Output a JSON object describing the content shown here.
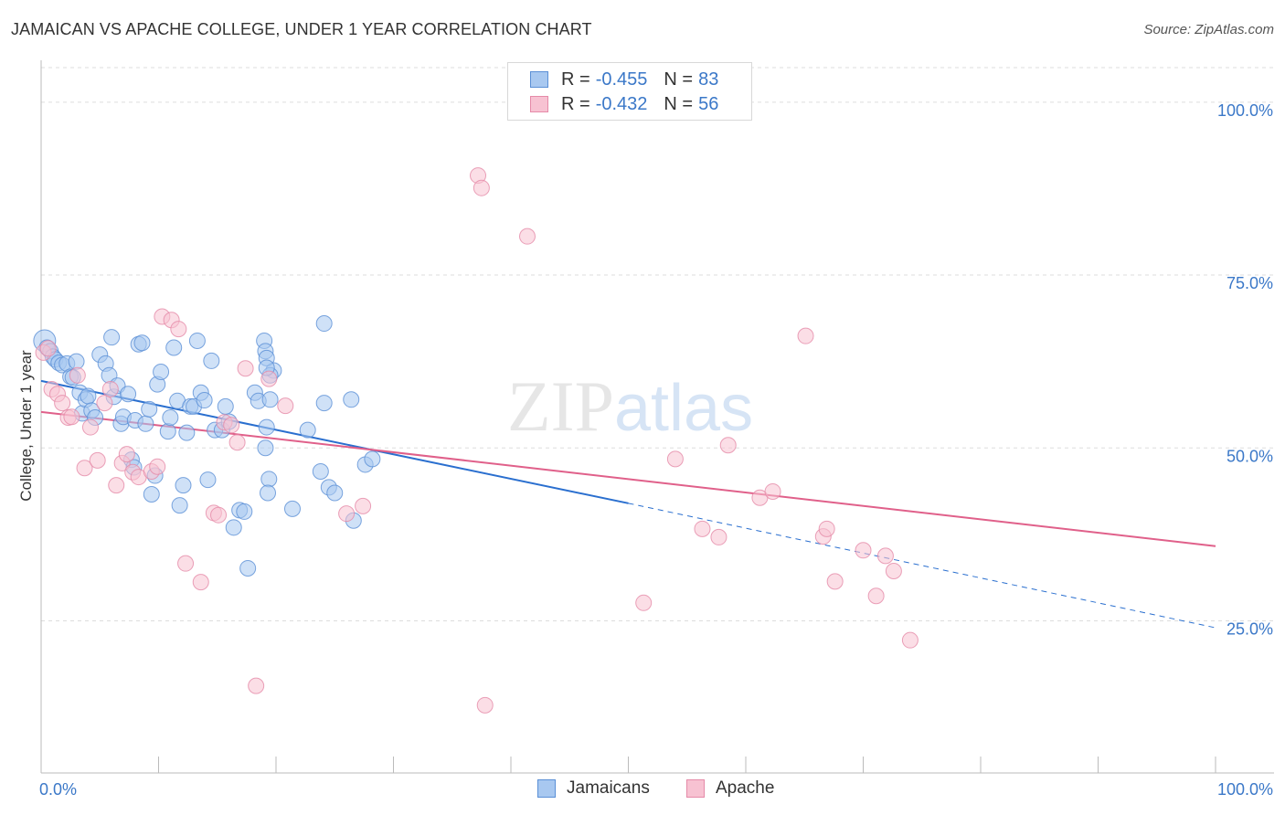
{
  "header": {
    "title": "JAMAICAN VS APACHE COLLEGE, UNDER 1 YEAR CORRELATION CHART",
    "source": "Source: ZipAtlas.com"
  },
  "watermark": {
    "zip": "ZIP",
    "atlas": "atlas"
  },
  "legend": {
    "rows": [
      {
        "r_label": "R =",
        "r_value": "-0.455",
        "n_label": "N =",
        "n_value": "83"
      },
      {
        "r_label": "R =",
        "r_value": "-0.432",
        "n_label": "N =",
        "n_value": "56"
      }
    ]
  },
  "bottom_legend": {
    "series1": "Jamaicans",
    "series2": "Apache"
  },
  "colors": {
    "jamaicans_fill": "#a8c8f0",
    "jamaicans_stroke": "#5a8fd6",
    "jamaicans_line": "#2a6fcf",
    "apache_fill": "#f7c2d2",
    "apache_stroke": "#e58aa8",
    "apache_line": "#e0608a",
    "tick_label": "#3b78c8",
    "grid": "#dddddd"
  },
  "chart_data": {
    "type": "scatter",
    "title": "JAMAICAN VS APACHE COLLEGE, UNDER 1 YEAR CORRELATION CHART",
    "xlabel": "",
    "ylabel": "College, Under 1 year",
    "xlim": [
      0,
      100
    ],
    "ylim": [
      3,
      105
    ],
    "x_tick_labels": [
      "0.0%",
      "100.0%"
    ],
    "y_ticks": [
      25,
      50,
      75,
      100
    ],
    "y_tick_labels": [
      "25.0%",
      "50.0%",
      "75.0%",
      "100.0%"
    ],
    "grid": true,
    "legend_position": "top-center",
    "series": [
      {
        "name": "Jamaicans",
        "r": -0.455,
        "n": 83,
        "trend": {
          "x0": 0,
          "y0": 59.7,
          "x1": 50,
          "y1": 42,
          "dashed_to_x": 100,
          "dashed_to_y": 24
        },
        "points": [
          [
            0.3,
            65.5
          ],
          [
            0.5,
            64.5
          ],
          [
            0.8,
            64
          ],
          [
            1,
            63.2
          ],
          [
            1.2,
            62.8
          ],
          [
            1.5,
            62.3
          ],
          [
            1.8,
            62
          ],
          [
            2.2,
            62.2
          ],
          [
            2.5,
            60.3
          ],
          [
            2.7,
            60.2
          ],
          [
            3,
            62.5
          ],
          [
            3.3,
            58
          ],
          [
            3.5,
            55
          ],
          [
            3.8,
            57
          ],
          [
            4,
            57.5
          ],
          [
            4.3,
            55.4
          ],
          [
            4.6,
            54.4
          ],
          [
            5,
            63.5
          ],
          [
            5.5,
            62.2
          ],
          [
            5.8,
            60.5
          ],
          [
            6,
            66
          ],
          [
            6.2,
            57.4
          ],
          [
            6.5,
            59
          ],
          [
            6.8,
            53.5
          ],
          [
            7,
            54.5
          ],
          [
            7.4,
            57.8
          ],
          [
            7.7,
            48.3
          ],
          [
            7.9,
            47.2
          ],
          [
            8,
            54
          ],
          [
            8.3,
            65
          ],
          [
            8.6,
            65.2
          ],
          [
            8.9,
            53.5
          ],
          [
            9.2,
            55.6
          ],
          [
            9.4,
            43.3
          ],
          [
            9.7,
            46
          ],
          [
            9.9,
            59.2
          ],
          [
            10.2,
            61
          ],
          [
            10.8,
            52.4
          ],
          [
            11,
            54.4
          ],
          [
            11.3,
            64.5
          ],
          [
            11.6,
            56.8
          ],
          [
            11.8,
            41.7
          ],
          [
            12.1,
            44.6
          ],
          [
            12.4,
            52.2
          ],
          [
            12.7,
            56
          ],
          [
            13,
            56
          ],
          [
            13.3,
            65.5
          ],
          [
            13.6,
            58
          ],
          [
            13.9,
            56.9
          ],
          [
            14.2,
            45.4
          ],
          [
            14.5,
            62.6
          ],
          [
            14.8,
            52.6
          ],
          [
            15.4,
            52.6
          ],
          [
            15.7,
            56
          ],
          [
            16,
            53.8
          ],
          [
            16.4,
            38.5
          ],
          [
            16.9,
            41
          ],
          [
            17.3,
            40.8
          ],
          [
            17.6,
            32.6
          ],
          [
            18.2,
            58
          ],
          [
            18.5,
            56.8
          ],
          [
            19,
            65.5
          ],
          [
            19.5,
            57
          ],
          [
            19.8,
            61.2
          ],
          [
            19.2,
            53
          ],
          [
            19.5,
            60.5
          ],
          [
            19.1,
            64
          ],
          [
            19.2,
            63
          ],
          [
            19.2,
            61.6
          ],
          [
            19.4,
            45.5
          ],
          [
            19.3,
            43.5
          ],
          [
            19.1,
            50
          ],
          [
            21.4,
            41.2
          ],
          [
            22.7,
            52.6
          ],
          [
            23.8,
            46.6
          ],
          [
            24.5,
            44.3
          ],
          [
            24.1,
            68
          ],
          [
            24.1,
            56.5
          ],
          [
            25,
            43.5
          ],
          [
            26.4,
            57
          ],
          [
            26.6,
            39.5
          ],
          [
            27.6,
            47.6
          ],
          [
            28.2,
            48.4
          ]
        ]
      },
      {
        "name": "Apache",
        "r": -0.432,
        "n": 56,
        "trend": {
          "x0": 0,
          "y0": 55.2,
          "x1": 100,
          "y1": 35.8
        },
        "points": [
          [
            0.2,
            63.8
          ],
          [
            0.6,
            64.4
          ],
          [
            0.9,
            58.5
          ],
          [
            1.4,
            57.8
          ],
          [
            1.8,
            56.5
          ],
          [
            2.3,
            54.4
          ],
          [
            2.6,
            54.5
          ],
          [
            3.1,
            60.5
          ],
          [
            3.7,
            47.1
          ],
          [
            4.2,
            53
          ],
          [
            4.8,
            48.2
          ],
          [
            5.4,
            56.5
          ],
          [
            5.9,
            58.5
          ],
          [
            6.4,
            44.6
          ],
          [
            6.9,
            47.8
          ],
          [
            7.3,
            49.1
          ],
          [
            7.8,
            46.5
          ],
          [
            8.3,
            45.8
          ],
          [
            9.4,
            46.6
          ],
          [
            9.9,
            47.3
          ],
          [
            10.3,
            69
          ],
          [
            11.1,
            68.5
          ],
          [
            11.7,
            67.2
          ],
          [
            12.3,
            33.3
          ],
          [
            13.6,
            30.6
          ],
          [
            14.7,
            40.6
          ],
          [
            15.1,
            40.3
          ],
          [
            15.6,
            53.7
          ],
          [
            16.2,
            53.3
          ],
          [
            16.7,
            50.8
          ],
          [
            17.4,
            61.5
          ],
          [
            18.3,
            15.6
          ],
          [
            19.4,
            60
          ],
          [
            20.8,
            56.1
          ],
          [
            26,
            40.5
          ],
          [
            27.4,
            41.6
          ],
          [
            37.2,
            89.4
          ],
          [
            37.5,
            87.6
          ],
          [
            37.8,
            12.8
          ],
          [
            41.4,
            80.6
          ],
          [
            51.3,
            27.6
          ],
          [
            54,
            48.4
          ],
          [
            56.3,
            38.3
          ],
          [
            57.7,
            37.1
          ],
          [
            58.5,
            50.4
          ],
          [
            61.2,
            42.8
          ],
          [
            62.3,
            43.7
          ],
          [
            65.1,
            66.2
          ],
          [
            66.6,
            37.2
          ],
          [
            66.9,
            38.3
          ],
          [
            67.6,
            30.7
          ],
          [
            70,
            35.2
          ],
          [
            71.1,
            28.6
          ],
          [
            71.9,
            34.4
          ],
          [
            72.6,
            32.2
          ],
          [
            74,
            22.2
          ]
        ]
      }
    ]
  }
}
